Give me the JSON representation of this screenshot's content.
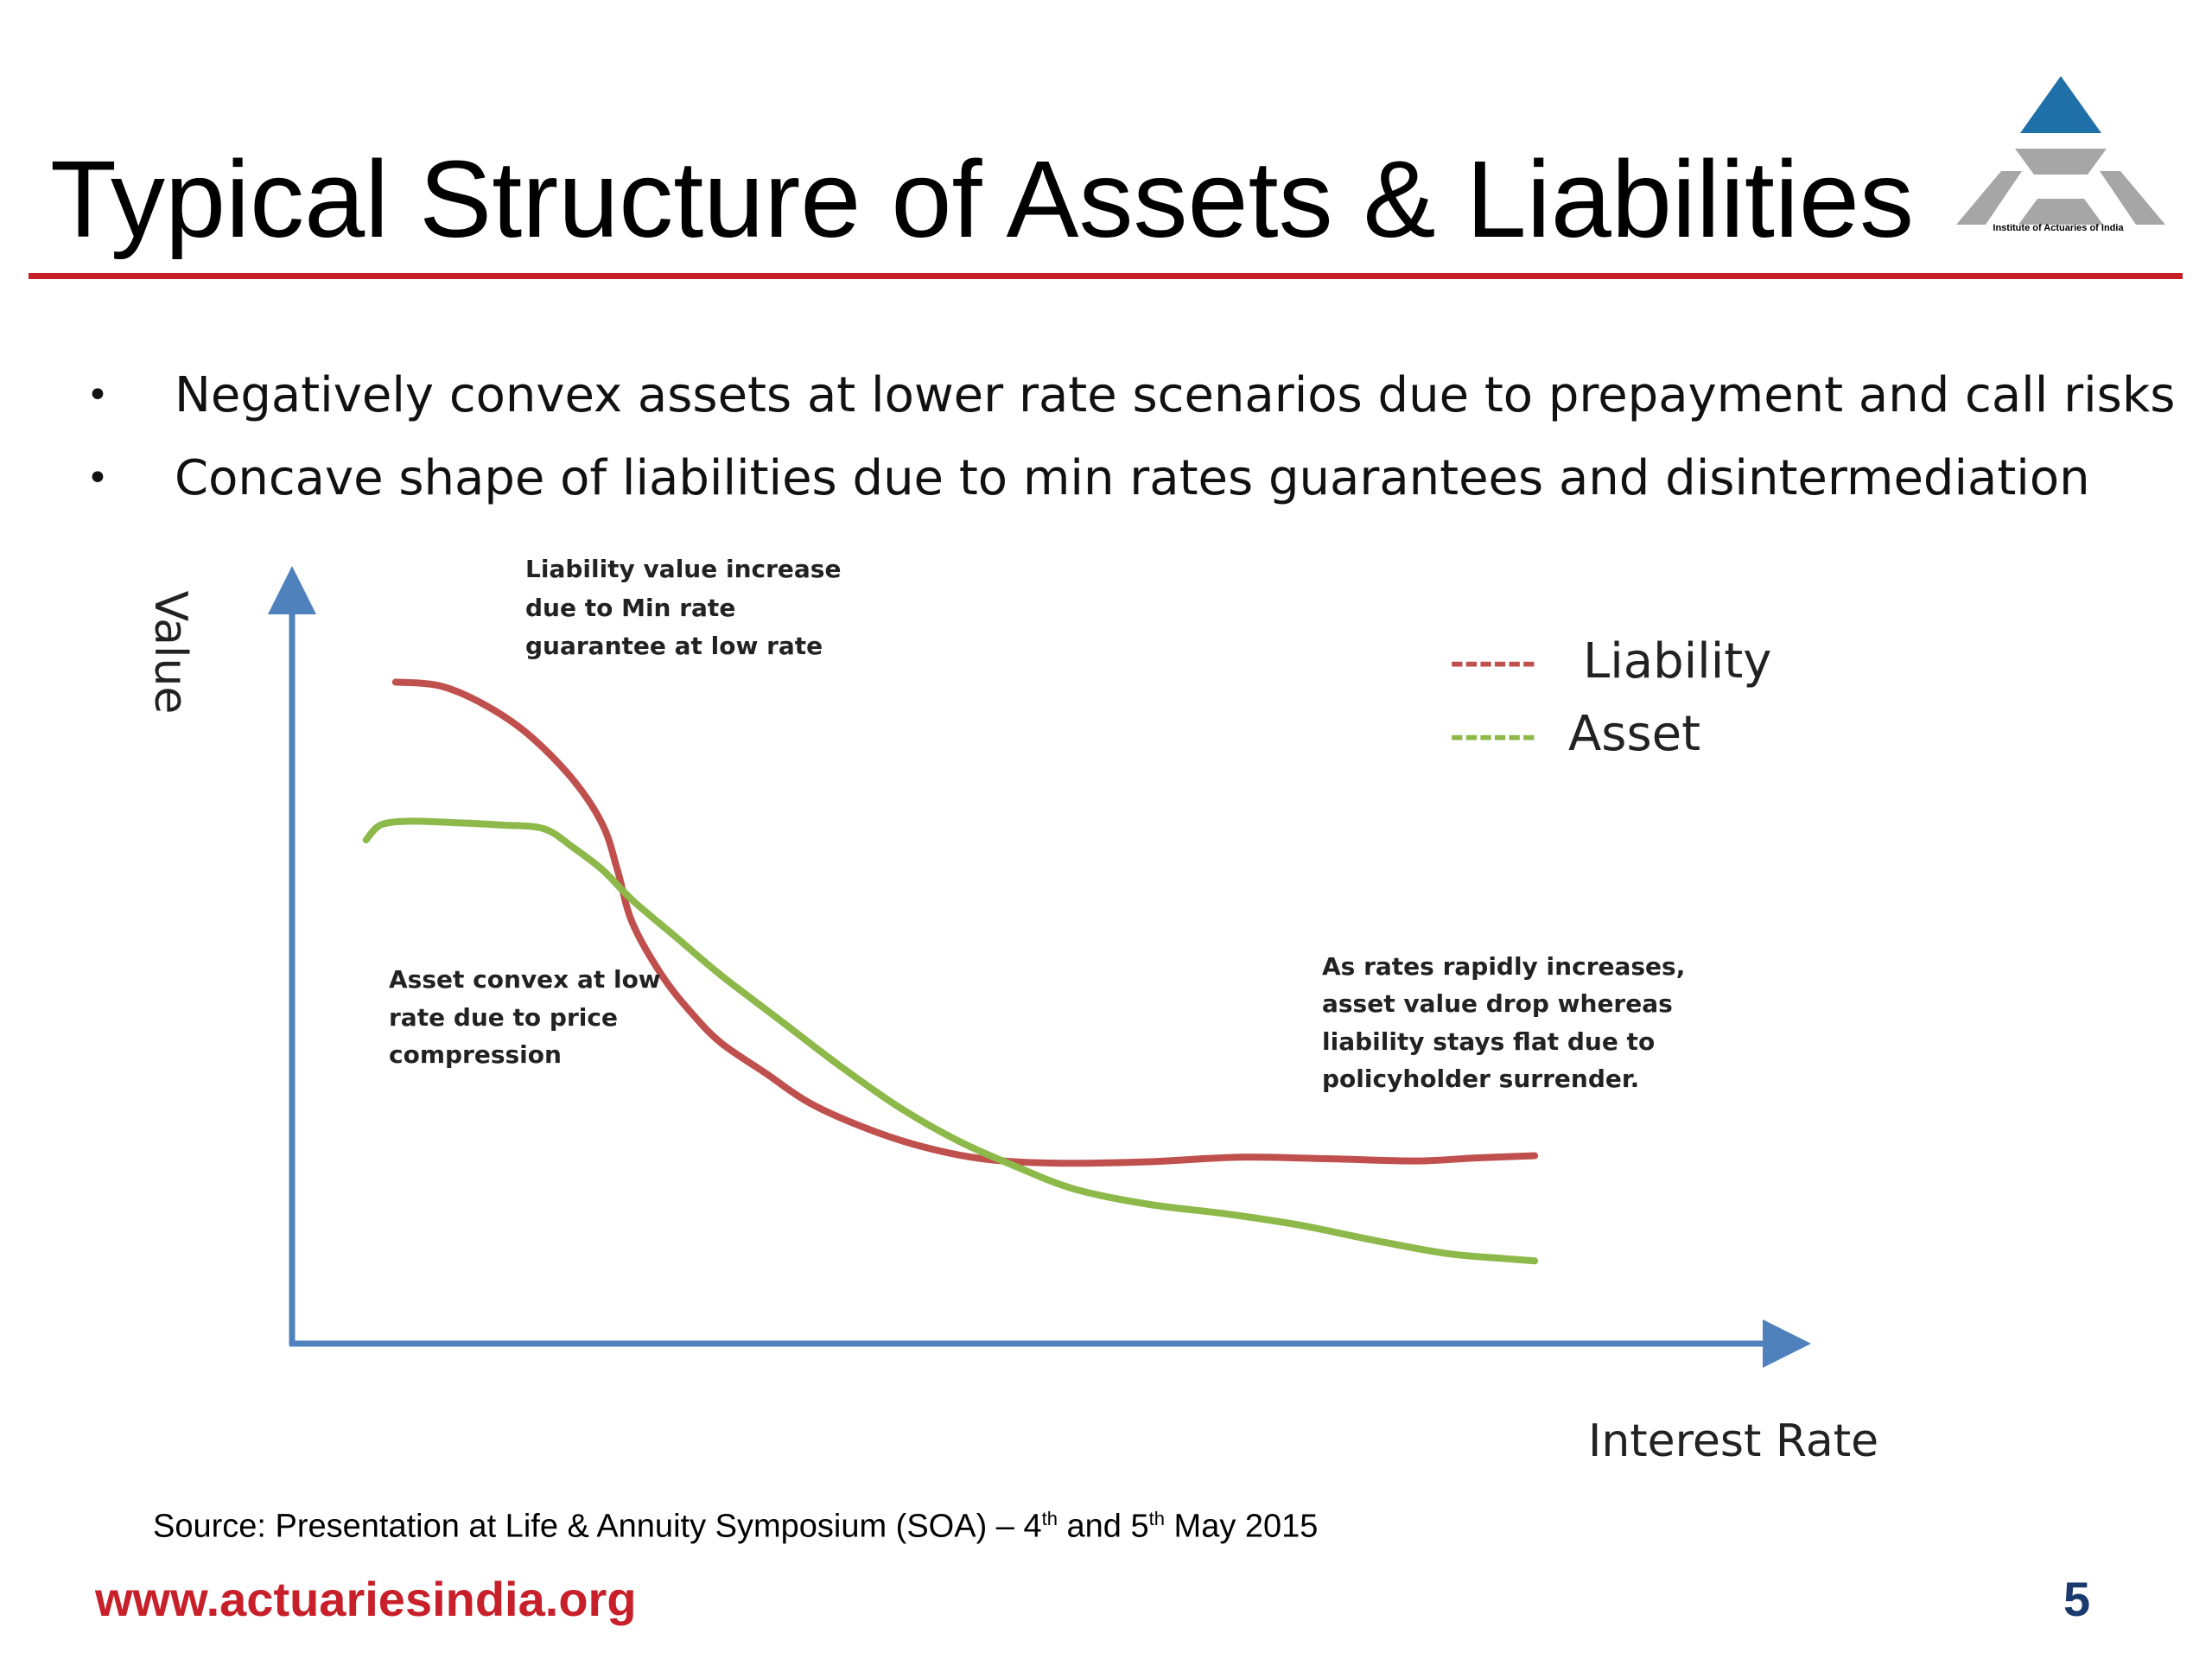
{
  "slide": {
    "title": "Typical Structure of Assets & Liabilities",
    "logo_caption": "Institute of Actuaries of India",
    "bullets": [
      "Negatively convex assets at lower rate scenarios due to prepayment and call risks",
      "Concave shape of liabilities due to min rates guarantees and disintermediation"
    ],
    "source": {
      "prefix": "Source: Presentation at Life & Annuity Symposium (SOA) – 4",
      "sup1": "th",
      "middle": " and 5",
      "sup2": "th",
      "suffix": " May 2015"
    },
    "footer_url": "www.actuariesindia.org",
    "page_number": "5"
  },
  "colors": {
    "accent_red": "#c8202a",
    "axis_blue": "#4f81bd",
    "liability": "#c0504d",
    "asset": "#8db84a",
    "logo_blue": "#1f6fa8",
    "logo_grey": "#a6a6a6"
  },
  "chart_data": {
    "type": "line",
    "xlabel": "Interest Rate",
    "ylabel": "Value",
    "xlim": [
      0,
      100
    ],
    "ylim": [
      0,
      100
    ],
    "grid": false,
    "legend_position": "top-right",
    "legend": [
      {
        "name": "Liability",
        "sample": "------"
      },
      {
        "name": "Asset",
        "sample": "------"
      }
    ],
    "series": [
      {
        "name": "Liability",
        "x": [
          7,
          10,
          13,
          16,
          19,
          21,
          22,
          23,
          25,
          27,
          29,
          32,
          35,
          39,
          43,
          47,
          52,
          58,
          64,
          70,
          76,
          80,
          84
        ],
        "y": [
          88,
          87.5,
          85,
          81,
          75,
          69,
          63,
          56,
          49,
          44,
          40,
          36,
          32,
          28.5,
          26,
          24.5,
          24,
          24.2,
          24.8,
          24.6,
          24.3,
          24.7,
          25
        ]
      },
      {
        "name": "Asset",
        "x": [
          5,
          6,
          8,
          11,
          14,
          17,
          19,
          21,
          23,
          26,
          29,
          33,
          37,
          41,
          45,
          49,
          53,
          58,
          63,
          68,
          73,
          78,
          82,
          84
        ],
        "y": [
          67,
          69,
          69.5,
          69.3,
          69,
          68.5,
          66,
          63,
          59,
          54,
          49,
          43,
          37,
          31.5,
          27,
          23.5,
          20.5,
          18.5,
          17.3,
          15.8,
          13.8,
          12,
          11.3,
          11
        ]
      }
    ],
    "annotations": [
      {
        "lines": [
          "Liability value increase",
          "due to Min rate",
          "guarantee at low rate"
        ]
      },
      {
        "lines": [
          "Asset convex at low",
          "rate due to price",
          "compression"
        ]
      },
      {
        "lines": [
          "As rates rapidly increases,",
          "asset value drop whereas",
          "liability stays flat due to",
          "policyholder surrender."
        ]
      }
    ]
  }
}
